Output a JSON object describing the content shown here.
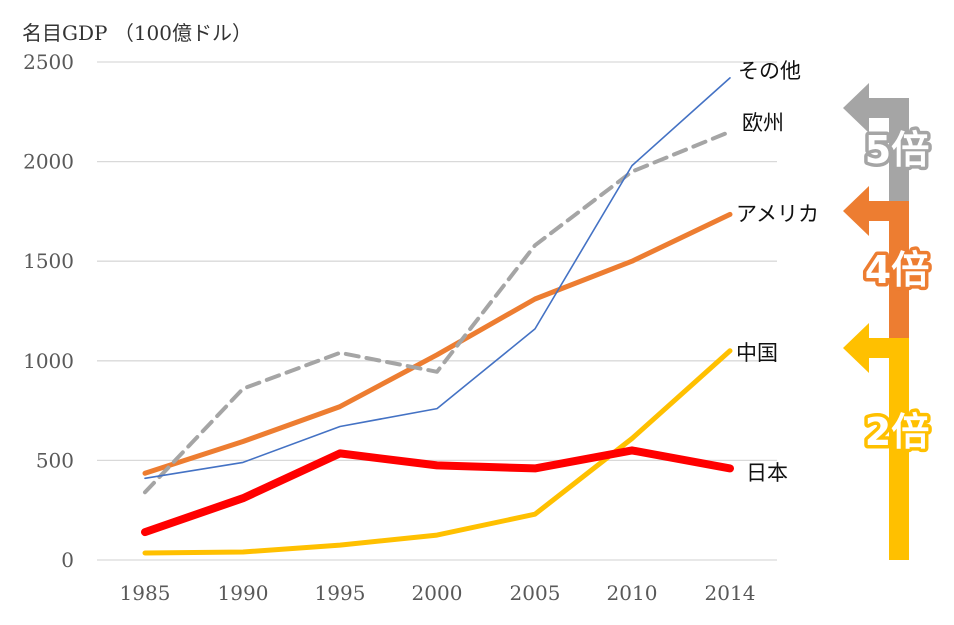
{
  "chart_data": {
    "type": "line",
    "ylabel": "名目GDP （100億ドル）",
    "x": [
      "1985",
      "1990",
      "1995",
      "2000",
      "2005",
      "2010",
      "2014"
    ],
    "y_ticks": [
      "0",
      "500",
      "1000",
      "1500",
      "2000",
      "2500"
    ],
    "ylim": [
      0,
      2500
    ],
    "grid": true,
    "legend": "labels at line ends (right)",
    "series": [
      {
        "name": "その他",
        "values": [
          410,
          490,
          670,
          760,
          1160,
          1980,
          2420
        ],
        "color": "#4472C4",
        "style": "solid-thin"
      },
      {
        "name": "欧州",
        "values": [
          340,
          860,
          1040,
          945,
          1580,
          1950,
          2150
        ],
        "color": "#A5A5A5",
        "style": "dashed"
      },
      {
        "name": "アメリカ",
        "values": [
          435,
          595,
          770,
          1030,
          1310,
          1500,
          1735
        ],
        "color": "#ED7D31",
        "style": "solid"
      },
      {
        "name": "中国",
        "values": [
          35,
          40,
          75,
          125,
          230,
          610,
          1050
        ],
        "color": "#FFC000",
        "style": "solid"
      },
      {
        "name": "日本",
        "values": [
          140,
          310,
          535,
          475,
          460,
          550,
          460
        ],
        "color": "#FF0000",
        "style": "solid-thick"
      }
    ],
    "annotations": [
      {
        "text": "5倍",
        "color": "#A5A5A5"
      },
      {
        "text": "4倍",
        "color": "#ED7D31"
      },
      {
        "text": "2倍",
        "color": "#FFC000"
      }
    ]
  }
}
